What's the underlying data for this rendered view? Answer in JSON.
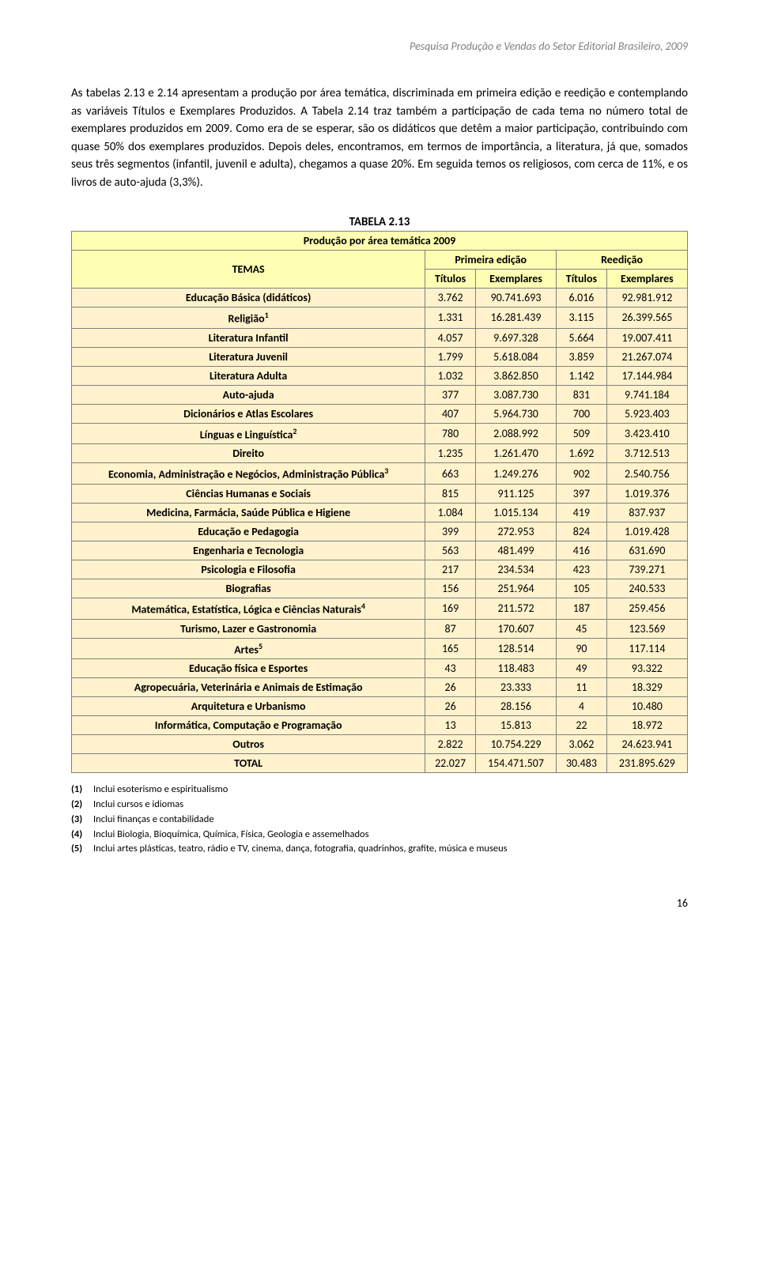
{
  "header": "Pesquisa Produção e Vendas do Setor Editorial Brasileiro, 2009",
  "paragraph": "As tabelas 2.13 e 2.14 apresentam a produção por área temática, discriminada em primeira edição e reedição e contemplando as variáveis Títulos e Exemplares Produzidos. A Tabela 2.14 traz também a participação de cada tema no número total de exemplares produzidos em 2009. Como era de se esperar, são os didáticos que detêm a maior participação, contribuindo com quase 50% dos exemplares produzidos. Depois deles, encontramos, em termos de importância, a literatura, já que, somados seus três segmentos (infantil, juvenil e adulta), chegamos a quase 20%. Em seguida temos os religiosos, com cerca de 11%, e os livros de auto-ajuda (3,3%).",
  "table_label": "TABELA  2.13",
  "table_subtitle": "Produção por área temática 2009",
  "colors": {
    "header_bg": "#ffffb3",
    "row_bg": "#fff2cc",
    "border": "#808080"
  },
  "col_headers": {
    "temas": "TEMAS",
    "primeira": "Primeira edição",
    "reedicao": "Reedição",
    "titulos": "Títulos",
    "exemplares": "Exemplares"
  },
  "rows": [
    {
      "theme": "Educação Básica (didáticos)",
      "sup": "",
      "t1": "3.762",
      "e1": "90.741.693",
      "t2": "6.016",
      "e2": "92.981.912"
    },
    {
      "theme": "Religião",
      "sup": "1",
      "t1": "1.331",
      "e1": "16.281.439",
      "t2": "3.115",
      "e2": "26.399.565"
    },
    {
      "theme": "Literatura Infantil",
      "sup": "",
      "t1": "4.057",
      "e1": "9.697.328",
      "t2": "5.664",
      "e2": "19.007.411"
    },
    {
      "theme": "Literatura Juvenil",
      "sup": "",
      "t1": "1.799",
      "e1": "5.618.084",
      "t2": "3.859",
      "e2": "21.267.074"
    },
    {
      "theme": "Literatura Adulta",
      "sup": "",
      "t1": "1.032",
      "e1": "3.862.850",
      "t2": "1.142",
      "e2": "17.144.984"
    },
    {
      "theme": "Auto-ajuda",
      "sup": "",
      "t1": "377",
      "e1": "3.087.730",
      "t2": "831",
      "e2": "9.741.184"
    },
    {
      "theme": "Dicionários e Atlas Escolares",
      "sup": "",
      "t1": "407",
      "e1": "5.964.730",
      "t2": "700",
      "e2": "5.923.403"
    },
    {
      "theme": "Línguas e Linguística",
      "sup": "2",
      "t1": "780",
      "e1": "2.088.992",
      "t2": "509",
      "e2": "3.423.410"
    },
    {
      "theme": "Direito",
      "sup": "",
      "t1": "1.235",
      "e1": "1.261.470",
      "t2": "1.692",
      "e2": "3.712.513"
    },
    {
      "theme": "Economia, Administração e Negócios, Administração Pública",
      "sup": "3",
      "t1": "663",
      "e1": "1.249.276",
      "t2": "902",
      "e2": "2.540.756"
    },
    {
      "theme": "Ciências Humanas e Sociais",
      "sup": "",
      "t1": "815",
      "e1": "911.125",
      "t2": "397",
      "e2": "1.019.376"
    },
    {
      "theme": "Medicina, Farmácia, Saúde Pública e Higiene",
      "sup": "",
      "t1": "1.084",
      "e1": "1.015.134",
      "t2": "419",
      "e2": "837.937"
    },
    {
      "theme": "Educação e Pedagogia",
      "sup": "",
      "t1": "399",
      "e1": "272.953",
      "t2": "824",
      "e2": "1.019.428"
    },
    {
      "theme": "Engenharia e Tecnologia",
      "sup": "",
      "t1": "563",
      "e1": "481.499",
      "t2": "416",
      "e2": "631.690"
    },
    {
      "theme": "Psicologia e Filosofia",
      "sup": "",
      "t1": "217",
      "e1": "234.534",
      "t2": "423",
      "e2": "739.271"
    },
    {
      "theme": "Biografias",
      "sup": "",
      "t1": "156",
      "e1": "251.964",
      "t2": "105",
      "e2": "240.533"
    },
    {
      "theme": "Matemática, Estatística, Lógica e Ciências Naturais",
      "sup": "4",
      "t1": "169",
      "e1": "211.572",
      "t2": "187",
      "e2": "259.456"
    },
    {
      "theme": "Turismo, Lazer e Gastronomia",
      "sup": "",
      "t1": "87",
      "e1": "170.607",
      "t2": "45",
      "e2": "123.569"
    },
    {
      "theme": "Artes",
      "sup": "5",
      "t1": "165",
      "e1": "128.514",
      "t2": "90",
      "e2": "117.114"
    },
    {
      "theme": "Educação física e Esportes",
      "sup": "",
      "t1": "43",
      "e1": "118.483",
      "t2": "49",
      "e2": "93.322"
    },
    {
      "theme": "Agropecuária, Veterinária e Animais de Estimação",
      "sup": "",
      "t1": "26",
      "e1": "23.333",
      "t2": "11",
      "e2": "18.329"
    },
    {
      "theme": "Arquitetura e Urbanismo",
      "sup": "",
      "t1": "26",
      "e1": "28.156",
      "t2": "4",
      "e2": "10.480"
    },
    {
      "theme": "Informática, Computação e Programação",
      "sup": "",
      "t1": "13",
      "e1": "15.813",
      "t2": "22",
      "e2": "18.972"
    },
    {
      "theme": "Outros",
      "sup": "",
      "t1": "2.822",
      "e1": "10.754.229",
      "t2": "3.062",
      "e2": "24.623.941"
    },
    {
      "theme": "TOTAL",
      "sup": "",
      "t1": "22.027",
      "e1": "154.471.507",
      "t2": "30.483",
      "e2": "231.895.629"
    }
  ],
  "footnotes": [
    {
      "n": "(1)",
      "text": "Inclui esoterismo e espiritualismo"
    },
    {
      "n": "(2)",
      "text": "Inclui cursos e idiomas"
    },
    {
      "n": "(3)",
      "text": "Inclui finanças e contabilidade"
    },
    {
      "n": "(4)",
      "text": "Inclui Biologia, Bioquímica, Química, Física, Geologia e assemelhados"
    },
    {
      "n": "(5)",
      "text": "Inclui artes plásticas, teatro, rádio e TV, cinema, dança, fotografia, quadrinhos, grafite, música e museus"
    }
  ],
  "page_number": "16"
}
